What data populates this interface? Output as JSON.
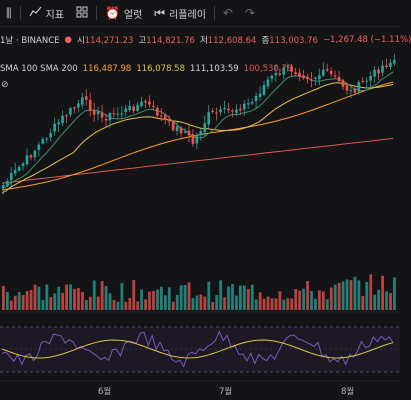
{
  "toolbar": {
    "indicators_label": "지표",
    "alert_label": "얼럿",
    "replay_label": "리플레이"
  },
  "info": {
    "symbol": "1날 · BINANCE",
    "open_label": "시",
    "open": "114,271.23",
    "high_label": "고",
    "high": "114,821.76",
    "low_label": "저",
    "low": "112,608.64",
    "close_label": "종",
    "close": "113,003.76",
    "change": "−1,267.48 (−1.11%)"
  },
  "sma": {
    "label": "SMA 100 SMA 200",
    "v1": "116,487.98",
    "v2": "116,078.58",
    "v3": "111,103.59",
    "v4": "100,530.79"
  },
  "xaxis": {
    "labels": [
      "6월",
      "7월",
      "8월"
    ]
  },
  "colors": {
    "up": "#26a69a",
    "down": "#ef5350",
    "background": "#141417"
  },
  "icons": [
    "chart-type-icon",
    "indicators-icon",
    "templates-icon",
    "alert-icon",
    "replay-icon",
    "undo-icon",
    "redo-icon",
    "visibility-icon"
  ]
}
